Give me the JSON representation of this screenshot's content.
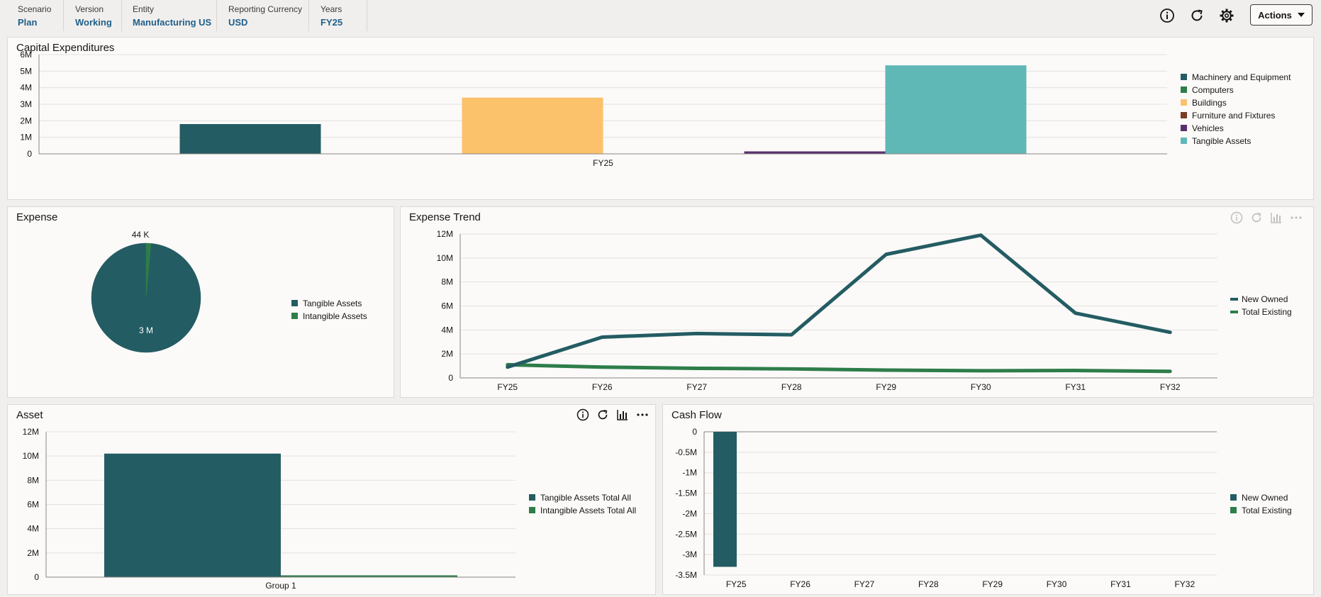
{
  "pov": [
    {
      "label": "Scenario",
      "value": "Plan"
    },
    {
      "label": "Version",
      "value": "Working"
    },
    {
      "label": "Entity",
      "value": "Manufacturing US"
    },
    {
      "label": "Reporting Currency",
      "value": "USD"
    },
    {
      "label": "Years",
      "value": "FY25"
    }
  ],
  "toolbar": {
    "actions_label": "Actions",
    "icons": [
      "info-icon",
      "refresh-icon",
      "gear-icon"
    ]
  },
  "colors": {
    "teal_dark": "#245c63",
    "green": "#2e7d4a",
    "orange": "#fbc16b",
    "brown": "#7b3b26",
    "purple": "#5b2f6e",
    "teal_light": "#60b8b6"
  },
  "panels": {
    "capex": {
      "title": "Capital Expenditures"
    },
    "expense": {
      "title": "Expense"
    },
    "trend": {
      "title": "Expense Trend"
    },
    "asset": {
      "title": "Asset"
    },
    "cashflow": {
      "title": "Cash Flow"
    }
  },
  "chart_data": [
    {
      "id": "capex",
      "type": "bar",
      "title": "Capital Expenditures",
      "categories": [
        "FY25"
      ],
      "series": [
        {
          "name": "Machinery and Equipment",
          "values": [
            1800000
          ],
          "color": "#245c63"
        },
        {
          "name": "Computers",
          "values": [
            0
          ],
          "color": "#2e7d4a"
        },
        {
          "name": "Buildings",
          "values": [
            3400000
          ],
          "color": "#fbc16b"
        },
        {
          "name": "Furniture and Fixtures",
          "values": [
            0
          ],
          "color": "#7b3b26"
        },
        {
          "name": "Vehicles",
          "values": [
            150000
          ],
          "color": "#5b2f6e"
        },
        {
          "name": "Tangible Assets",
          "values": [
            5350000
          ],
          "color": "#60b8b6"
        }
      ],
      "ylim": [
        0,
        6000000
      ],
      "yticks": [
        "0",
        "1M",
        "2M",
        "3M",
        "4M",
        "5M",
        "6M"
      ],
      "legend": "right"
    },
    {
      "id": "expense",
      "type": "pie",
      "title": "Expense",
      "slices": [
        {
          "name": "Tangible Assets",
          "value": 3000000,
          "label": "3 M",
          "color": "#245c63"
        },
        {
          "name": "Intangible Assets",
          "value": 44000,
          "label": "44 K",
          "color": "#2e7d4a"
        }
      ],
      "legend": "right"
    },
    {
      "id": "trend",
      "type": "line",
      "title": "Expense Trend",
      "x": [
        "FY25",
        "FY26",
        "FY27",
        "FY28",
        "FY29",
        "FY30",
        "FY31",
        "FY32"
      ],
      "series": [
        {
          "name": "New Owned",
          "values": [
            900000,
            3400000,
            3700000,
            3600000,
            10300000,
            11900000,
            5400000,
            3800000
          ],
          "color": "#245c63"
        },
        {
          "name": "Total Existing",
          "values": [
            1100000,
            900000,
            800000,
            750000,
            650000,
            600000,
            620000,
            550000
          ],
          "color": "#2e7d4a"
        }
      ],
      "ylim": [
        0,
        12000000
      ],
      "yticks": [
        "0",
        "2M",
        "4M",
        "6M",
        "8M",
        "10M",
        "12M"
      ],
      "legend": "right"
    },
    {
      "id": "asset",
      "type": "bar",
      "title": "Asset",
      "categories": [
        "Group 1"
      ],
      "series": [
        {
          "name": "Tangible Assets Total All",
          "values": [
            10200000
          ],
          "color": "#245c63"
        },
        {
          "name": "Intangible Assets Total All",
          "values": [
            150000
          ],
          "color": "#2e7d4a"
        }
      ],
      "ylim": [
        0,
        12000000
      ],
      "yticks": [
        "0",
        "2M",
        "4M",
        "6M",
        "8M",
        "10M",
        "12M"
      ],
      "legend": "right"
    },
    {
      "id": "cashflow",
      "type": "bar",
      "title": "Cash Flow",
      "categories": [
        "FY25",
        "FY26",
        "FY27",
        "FY28",
        "FY29",
        "FY30",
        "FY31",
        "FY32"
      ],
      "series": [
        {
          "name": "New Owned",
          "values": [
            -3300000,
            0,
            0,
            0,
            0,
            0,
            0,
            0
          ],
          "color": "#245c63"
        },
        {
          "name": "Total Existing",
          "values": [
            0,
            0,
            0,
            0,
            0,
            0,
            0,
            0
          ],
          "color": "#2e7d4a"
        }
      ],
      "ylim": [
        -3500000,
        0
      ],
      "yticks": [
        "-3.5M",
        "-3M",
        "-2.5M",
        "-2M",
        "-1.5M",
        "-1M",
        "-0.5M",
        "0"
      ],
      "legend": "right"
    }
  ]
}
